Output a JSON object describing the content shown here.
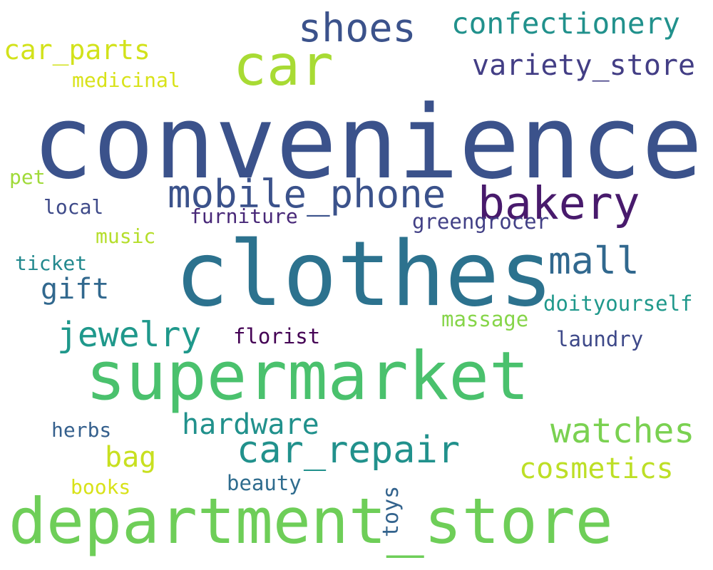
{
  "words": [
    {
      "text": "convenience",
      "color": "#3b528b"
    },
    {
      "text": "clothes",
      "color": "#2c728e"
    },
    {
      "text": "supermarket",
      "color": "#4ac16d"
    },
    {
      "text": "department_store",
      "color": "#6ece58"
    },
    {
      "text": "car",
      "color": "#a8db34"
    },
    {
      "text": "mobile_phone",
      "color": "#3b528b"
    },
    {
      "text": "bakery",
      "color": "#481a6c"
    },
    {
      "text": "shoes",
      "color": "#3b528b"
    },
    {
      "text": "car_repair",
      "color": "#21918c"
    },
    {
      "text": "mall",
      "color": "#31688e"
    },
    {
      "text": "jewelry",
      "color": "#1f988b"
    },
    {
      "text": "watches",
      "color": "#7ad151"
    },
    {
      "text": "gift",
      "color": "#31688e"
    },
    {
      "text": "confectionery",
      "color": "#21918c"
    },
    {
      "text": "variety_store",
      "color": "#433e85"
    },
    {
      "text": "hardware",
      "color": "#21918c"
    },
    {
      "text": "cosmetics",
      "color": "#bddf26"
    },
    {
      "text": "car_parts",
      "color": "#d2e21b"
    },
    {
      "text": "bag",
      "color": "#c8e020"
    },
    {
      "text": "greengrocer",
      "color": "#424086"
    },
    {
      "text": "doityourself",
      "color": "#1f988b"
    },
    {
      "text": "furniture",
      "color": "#482878"
    },
    {
      "text": "massage",
      "color": "#86d549"
    },
    {
      "text": "florist",
      "color": "#440154"
    },
    {
      "text": "laundry",
      "color": "#3e4989"
    },
    {
      "text": "medicinal",
      "color": "#d8e219"
    },
    {
      "text": "beauty",
      "color": "#2f6c8e"
    },
    {
      "text": "music",
      "color": "#b5de2b"
    },
    {
      "text": "herbs",
      "color": "#35608d"
    },
    {
      "text": "ticket",
      "color": "#23898e"
    },
    {
      "text": "local",
      "color": "#3e4a89"
    },
    {
      "text": "books",
      "color": "#d8e219"
    },
    {
      "text": "pet",
      "color": "#a0da39"
    },
    {
      "text": "toys",
      "color": "#33638d"
    }
  ]
}
